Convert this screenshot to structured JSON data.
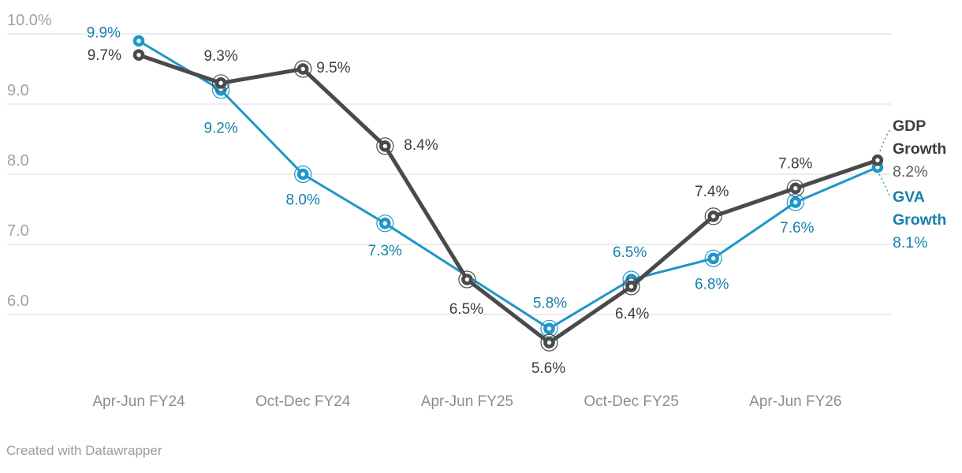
{
  "chart_data": {
    "type": "line",
    "n_points": 10,
    "grid": true,
    "legend_position": "right",
    "x_ticks": [
      {
        "index": 0,
        "label": "Apr-Jun FY24"
      },
      {
        "index": 2,
        "label": "Oct-Dec FY24"
      },
      {
        "index": 4,
        "label": "Apr-Jun FY25"
      },
      {
        "index": 6,
        "label": "Oct-Dec FY25"
      },
      {
        "index": 8,
        "label": "Apr-Jun FY26"
      }
    ],
    "y_ticks": [
      {
        "label": "10.0%",
        "value": 10
      },
      {
        "label": "9.0",
        "value": 9
      },
      {
        "label": "8.0",
        "value": 8
      },
      {
        "label": "7.0",
        "value": 7
      },
      {
        "label": "6.0",
        "value": 6
      }
    ],
    "y_axis_range": [
      5.4,
      10.0
    ],
    "series": [
      {
        "name": "GDP Growth",
        "slug": "gdp",
        "color": "#4a4a4a",
        "label_color": "#3d3d3d",
        "values": [
          9.7,
          9.3,
          9.5,
          8.4,
          6.5,
          5.6,
          6.4,
          7.4,
          7.8,
          8.2
        ],
        "labels": [
          {
            "text": "9.7%",
            "anchor": "end",
            "dx": -22,
            "dy": 1
          },
          {
            "text": "9.3%",
            "anchor": "middle",
            "dx": 0,
            "dy": -34
          },
          {
            "text": "9.5%",
            "anchor": "start",
            "dx": 17,
            "dy": -1
          },
          {
            "text": "8.4%",
            "anchor": "start",
            "dx": 24,
            "dy": -1
          },
          {
            "text": "6.5%",
            "anchor": "middle",
            "dx": -1,
            "dy": 38
          },
          {
            "text": "5.6%",
            "anchor": "middle",
            "dx": -1,
            "dy": 33
          },
          {
            "text": "6.4%",
            "anchor": "middle",
            "dx": 1,
            "dy": 35
          },
          {
            "text": "7.4%",
            "anchor": "middle",
            "dx": -2,
            "dy": -31
          },
          {
            "text": "7.8%",
            "anchor": "middle",
            "dx": 0,
            "dy": -31
          },
          null
        ]
      },
      {
        "name": "GVA Growth",
        "slug": "gva",
        "color": "#1f96c8",
        "label_color": "#1780ab",
        "values": [
          9.9,
          9.2,
          8.0,
          7.3,
          null,
          5.8,
          6.5,
          6.8,
          7.6,
          8.1
        ],
        "labels": [
          {
            "text": "9.9%",
            "anchor": "end",
            "dx": -23,
            "dy": -10
          },
          {
            "text": "9.2%",
            "anchor": "middle",
            "dx": 0,
            "dy": 49
          },
          {
            "text": "8.0%",
            "anchor": "middle",
            "dx": 0,
            "dy": 33
          },
          {
            "text": "7.3%",
            "anchor": "middle",
            "dx": 0,
            "dy": 35
          },
          null,
          {
            "text": "5.8%",
            "anchor": "middle",
            "dx": 1,
            "dy": -32
          },
          {
            "text": "6.5%",
            "anchor": "middle",
            "dx": -2,
            "dy": -34
          },
          {
            "text": "6.8%",
            "anchor": "middle",
            "dx": -2,
            "dy": 33
          },
          {
            "text": "7.6%",
            "anchor": "middle",
            "dx": 2,
            "dy": 33
          },
          null
        ]
      }
    ],
    "legend": [
      {
        "label": "GDP Growth",
        "value": "8.2%"
      },
      {
        "label": "GVA Growth",
        "value": "8.1%"
      }
    ]
  },
  "footer": {
    "credit": "Created with Datawrapper"
  }
}
